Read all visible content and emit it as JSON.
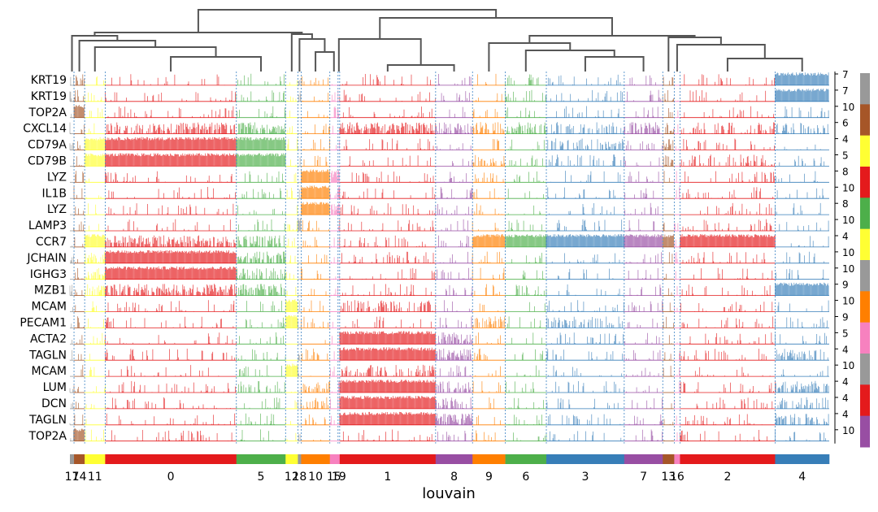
{
  "chart_data": {
    "type": "tracksplot",
    "title": "",
    "xlabel": "louvain",
    "dendrogram": true,
    "genes": [
      "KRT19",
      "KRT19",
      "TOP2A",
      "CXCL14",
      "CD79A",
      "CD79B",
      "LYZ",
      "IL1B",
      "LYZ",
      "LAMP3",
      "CCR7",
      "JCHAIN",
      "IGHG3",
      "MZB1",
      "MCAM",
      "PECAM1",
      "ACTA2",
      "TAGLN",
      "MCAM",
      "LUM",
      "DCN",
      "TAGLN",
      "TOP2A"
    ],
    "right_labels": [
      "7",
      "7",
      "10",
      "6",
      "4",
      "5",
      "8",
      "10",
      "8",
      "10",
      "4",
      "10",
      "10",
      "9",
      "10",
      "9",
      "5",
      "4",
      "10",
      "4",
      "4",
      "4",
      "10"
    ],
    "groups": [
      "17",
      "14",
      "11",
      "0",
      "5",
      "12",
      "18",
      "10",
      "15",
      "19",
      "1",
      "8",
      "9",
      "6",
      "3",
      "7",
      "13",
      "16",
      "2",
      "4"
    ],
    "group_counts": [
      5,
      13,
      25,
      160,
      60,
      15,
      4,
      35,
      10,
      2,
      117,
      45,
      40,
      50,
      95,
      47,
      14,
      7,
      116,
      66
    ],
    "group_colors": {
      "0": "#e41a1c",
      "1": "#e41a1c",
      "2": "#e41a1c",
      "3": "#377eb8",
      "4": "#377eb8",
      "5": "#4daf4a",
      "6": "#4daf4a",
      "7": "#984ea3",
      "8": "#984ea3",
      "9": "#ff7f00",
      "10": "#ff7f00",
      "11": "#ffff33",
      "12": "#ffff33",
      "13": "#a65628",
      "14": "#a65628",
      "15": "#f781bf",
      "16": "#f781bf",
      "17": "#999999",
      "18": "#999999",
      "19": "#f781bf"
    },
    "expression_levels": {
      "KRT19": {
        "4": 1.0,
        "14": 0.5,
        "17": 0.5
      },
      "TOP2A": {
        "14": 1.0
      },
      "CXCL14": {
        "0": 0.6,
        "1": 0.7,
        "5": 0.6,
        "6": 0.5,
        "7": 0.5,
        "8": 0.5,
        "9": 0.5,
        "3": 0.35,
        "2": 0.3,
        "4": 0.3,
        "13": 0.5
      },
      "CD79A": {
        "0": 1.0,
        "5": 1.0,
        "11": 1.0,
        "13": 0.6,
        "17": 0.5,
        "3": 0.3
      },
      "CD79B": {
        "0": 1.0,
        "5": 1.0,
        "11": 0.8,
        "13": 0.5,
        "9": 0.4,
        "3": 0.3,
        "2": 0.3
      },
      "LYZ": {
        "10": 1.0,
        "19": 1.0,
        "15": 0.7
      },
      "IL1B": {
        "10": 1.0,
        "19": 1.0
      },
      "LAMP3": {
        "18": 1.0
      },
      "CCR7": {
        "3": 1.0,
        "2": 0.9,
        "6": 0.9,
        "7": 0.9,
        "9": 0.8,
        "0": 0.7,
        "5": 0.7,
        "11": 0.8,
        "13": 0.8
      },
      "JCHAIN": {
        "0": 0.8,
        "5": 0.6,
        "11": 0.6,
        "17": 0.6
      },
      "IGHG3": {
        "0": 0.9,
        "5": 0.5,
        "11": 0.6
      },
      "MZB1": {
        "4": 1.0,
        "0": 0.7,
        "5": 0.6,
        "11": 0.6,
        "17": 0.5
      },
      "MCAM": {
        "12": 1.0,
        "1": 0.4
      },
      "PECAM1": {
        "12": 1.0,
        "3": 0.4,
        "9": 0.4
      },
      "ACTA2": {
        "1": 1.0,
        "8": 0.6
      },
      "TAGLN": {
        "1": 1.0,
        "8": 0.7,
        "4": 0.4
      },
      "LUM": {
        "1": 1.0,
        "8": 0.5,
        "4": 0.4,
        "10": 0.4
      },
      "DCN": {
        "1": 1.0,
        "8": 0.5,
        "4": 0.4,
        "10": 0.4
      }
    },
    "right_colorbar": [
      "#999999",
      "#a65628",
      "#ffff33",
      "#e41a1c",
      "#4daf4a",
      "#ffff33",
      "#999999",
      "#ff7f00",
      "#f781bf",
      "#999999",
      "#e41a1c",
      "#984ea3"
    ]
  }
}
